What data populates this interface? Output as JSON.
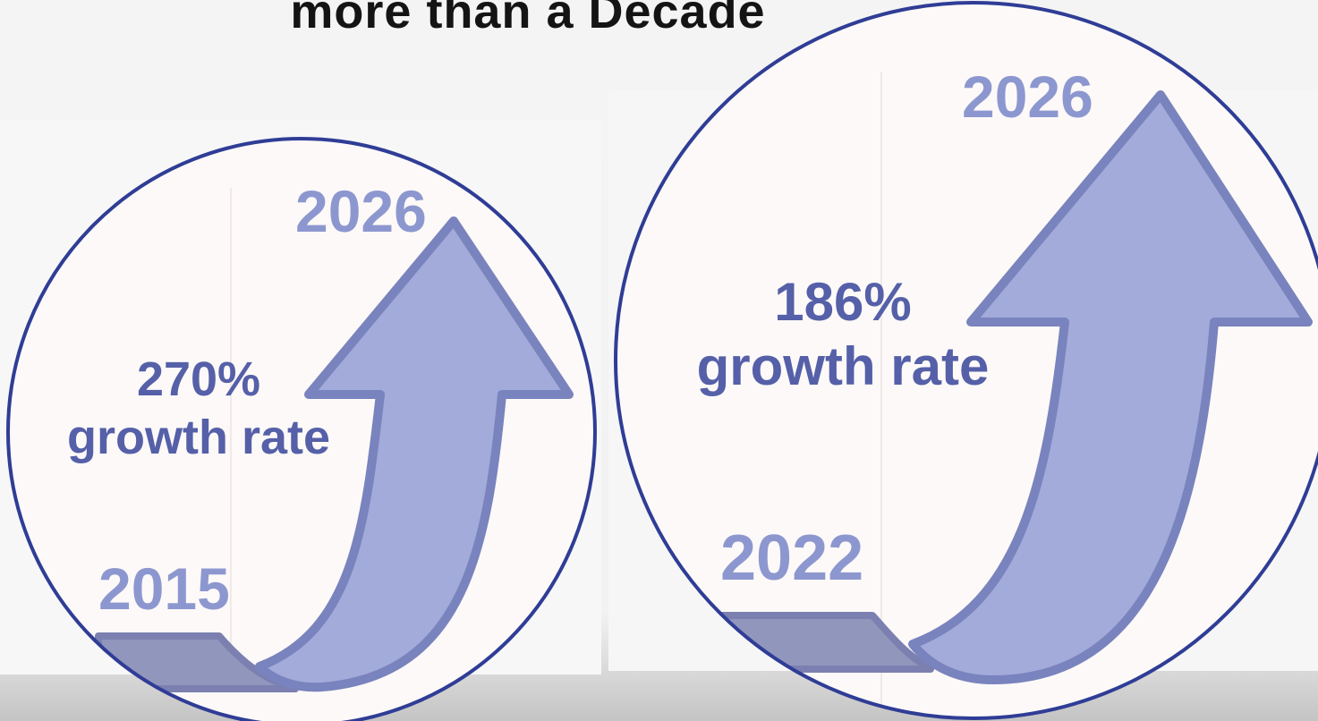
{
  "title": "more than a Decade",
  "colors": {
    "circle_outline": "#2f3d96",
    "arrow_fill": "#a3abda",
    "arrow_stroke": "#7983bd",
    "year_text": "#8d97cf",
    "growth_text": "#5560a8"
  },
  "panels": [
    {
      "start_year": "2015",
      "end_year": "2026",
      "growth_percent": "270%",
      "growth_label": "growth rate"
    },
    {
      "start_year": "2022",
      "end_year": "2026",
      "growth_percent": "186%",
      "growth_label": "growth rate"
    }
  ]
}
